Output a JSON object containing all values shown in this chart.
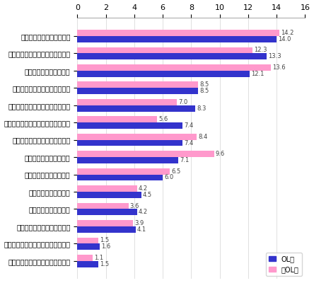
{
  "categories": [
    "旅行の満足度が高いところ",
    "観光サービスの水準が高いところ",
    "リピーターが多いところ",
    "観光資源のレベルが高いところ",
    "独自の世界観を持っているところ",
    "観光事業者にプロ意識があるところ",
    "人気ランキングで上位のところ",
    "観光客の数が多いところ",
    "旅行の費用が高いところ",
    "文化水準が高いところ",
    "団体客が少ないところ",
    "最近注目を集めているところ",
    "地域に住む人々を尊敬できるところ",
    "地場産業などの職人が多いところ"
  ],
  "ol_values": [
    14.0,
    13.3,
    12.1,
    8.5,
    8.3,
    7.4,
    7.4,
    7.1,
    6.0,
    4.5,
    4.2,
    4.1,
    1.6,
    1.5
  ],
  "non_ol_values": [
    14.2,
    12.3,
    13.6,
    8.5,
    7.0,
    5.6,
    8.4,
    9.6,
    6.5,
    4.2,
    3.6,
    3.9,
    1.5,
    1.1
  ],
  "ol_color": "#3333cc",
  "non_ol_color": "#ff99cc",
  "bar_height": 0.36,
  "xlim": [
    0,
    16
  ],
  "xticks": [
    0,
    2,
    4,
    6,
    8,
    10,
    12,
    14,
    16
  ],
  "legend_ol": "OL層",
  "legend_non_ol": "非OL層",
  "label_fontsize": 7.0,
  "tick_fontsize": 8,
  "value_fontsize": 6.0
}
